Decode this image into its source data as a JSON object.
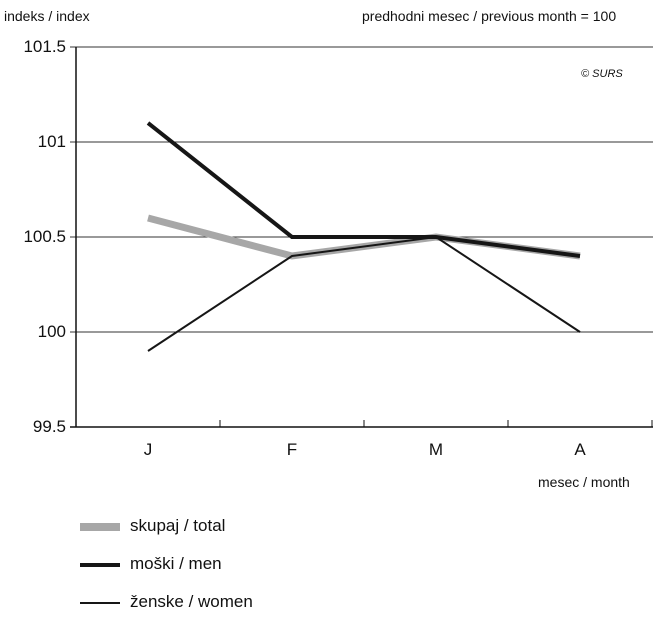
{
  "chart_data": {
    "type": "line",
    "ylabel": "indeks / index",
    "note": "predhodni mesec / previous month = 100",
    "copyright": "© SURS",
    "xlabel": "mesec  / month",
    "categories": [
      "J",
      "F",
      "M",
      "A"
    ],
    "ylim": [
      99.5,
      101.5
    ],
    "yticks": [
      {
        "value": 101.5,
        "label": "101.5"
      },
      {
        "value": 101,
        "label": "101"
      },
      {
        "value": 100.5,
        "label": "100.5"
      },
      {
        "value": 100,
        "label": "100"
      },
      {
        "value": 99.5,
        "label": "99.5"
      }
    ],
    "grid": true,
    "legend_position": "bottom-left",
    "series": [
      {
        "name": "skupaj / total",
        "values": [
          100.6,
          100.4,
          100.5,
          100.4
        ],
        "color": "#a7a7a7",
        "style": "thick-gray"
      },
      {
        "name": "moški / men",
        "values": [
          101.1,
          100.5,
          100.5,
          100.4
        ],
        "color": "#161616",
        "style": "thick-black"
      },
      {
        "name": "ženske / women",
        "values": [
          99.9,
          100.4,
          100.5,
          100.0
        ],
        "color": "#161616",
        "style": "thin-black"
      }
    ]
  }
}
